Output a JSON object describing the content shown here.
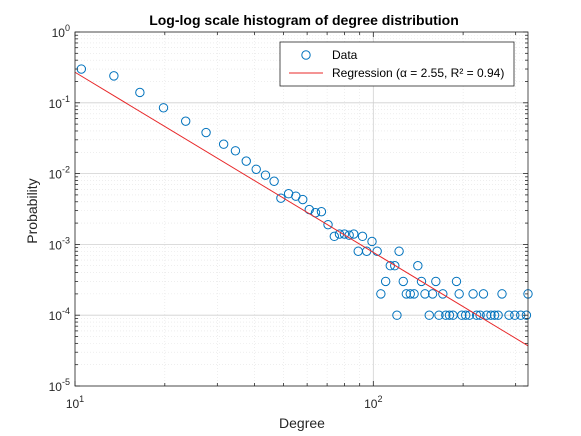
{
  "chart_data": {
    "type": "scatter",
    "title": "Log-log scale histogram of degree distribution",
    "xlabel": "Degree",
    "ylabel": "Probability",
    "xscale": "log",
    "yscale": "log",
    "xlim": [
      10,
      330
    ],
    "ylim": [
      1e-05,
      1
    ],
    "grid": true,
    "minor_grid": true,
    "legend_position": "top-right",
    "x_tick_labels": [
      {
        "base": "10",
        "exp": "1",
        "value": 10
      },
      {
        "base": "10",
        "exp": "2",
        "value": 100
      }
    ],
    "y_tick_labels": [
      {
        "base": "10",
        "exp": "0",
        "value": 1
      },
      {
        "base": "10",
        "exp": "-1",
        "value": 0.1
      },
      {
        "base": "10",
        "exp": "-2",
        "value": 0.01
      },
      {
        "base": "10",
        "exp": "-3",
        "value": 0.001
      },
      {
        "base": "10",
        "exp": "-4",
        "value": 0.0001
      },
      {
        "base": "10",
        "exp": "-5",
        "value": 1e-05
      }
    ],
    "series": [
      {
        "name": "Data",
        "kind": "markers",
        "marker": "circle",
        "color": "#0072BD",
        "points": [
          [
            10.5,
            0.3
          ],
          [
            13.5,
            0.24
          ],
          [
            16.5,
            0.14
          ],
          [
            19.8,
            0.085
          ],
          [
            23.5,
            0.055
          ],
          [
            27.5,
            0.038
          ],
          [
            31.5,
            0.026
          ],
          [
            34.5,
            0.021
          ],
          [
            37.5,
            0.015
          ],
          [
            40.5,
            0.0115
          ],
          [
            43.5,
            0.0095
          ],
          [
            46.5,
            0.0078
          ],
          [
            49,
            0.0045
          ],
          [
            52,
            0.0052
          ],
          [
            55,
            0.0048
          ],
          [
            58,
            0.0043
          ],
          [
            61,
            0.0031
          ],
          [
            64,
            0.0028
          ],
          [
            67,
            0.0029
          ],
          [
            70.5,
            0.0019
          ],
          [
            74,
            0.0013
          ],
          [
            77,
            0.0014
          ],
          [
            80,
            0.0014
          ],
          [
            83,
            0.00135
          ],
          [
            86,
            0.0014
          ],
          [
            89,
            0.0008
          ],
          [
            92,
            0.0013
          ],
          [
            95,
            0.0008
          ],
          [
            99,
            0.0011
          ],
          [
            103,
            0.0008
          ],
          [
            106,
            0.0002
          ],
          [
            110,
            0.0003
          ],
          [
            114,
            0.0005
          ],
          [
            118,
            0.0005
          ],
          [
            122,
            0.0008
          ],
          [
            120,
            0.0001
          ],
          [
            126,
            0.0003
          ],
          [
            129,
            0.0002
          ],
          [
            133,
            0.0002
          ],
          [
            137,
            0.0002
          ],
          [
            141,
            0.0005
          ],
          [
            145,
            0.0003
          ],
          [
            149,
            0.0002
          ],
          [
            154,
            0.0001
          ],
          [
            158,
            0.0002
          ],
          [
            162,
            0.0003
          ],
          [
            166,
            0.0001
          ],
          [
            171,
            0.0002
          ],
          [
            175,
            0.0001
          ],
          [
            180,
            0.0001
          ],
          [
            185,
            0.0001
          ],
          [
            190,
            0.0003
          ],
          [
            194,
            0.0002
          ],
          [
            198,
            0.0001
          ],
          [
            204,
            0.0001
          ],
          [
            210,
            0.0001
          ],
          [
            216,
            0.0002
          ],
          [
            222,
            0.0001
          ],
          [
            228,
            0.0001
          ],
          [
            234,
            0.0002
          ],
          [
            240,
            0.0001
          ],
          [
            248,
            0.0001
          ],
          [
            255,
            0.0001
          ],
          [
            262,
            0.0001
          ],
          [
            270,
            0.0002
          ],
          [
            285,
            0.0001
          ],
          [
            298,
            0.0001
          ],
          [
            312,
            0.0001
          ],
          [
            326,
            0.0001
          ],
          [
            330,
            0.0002
          ]
        ]
      },
      {
        "name": "Regression (α = 2.55, R² = 0.94)",
        "kind": "line",
        "color": "#e8282a",
        "points": [
          [
            10,
            0.27
          ],
          [
            330,
            3.7e-05
          ]
        ]
      }
    ]
  }
}
